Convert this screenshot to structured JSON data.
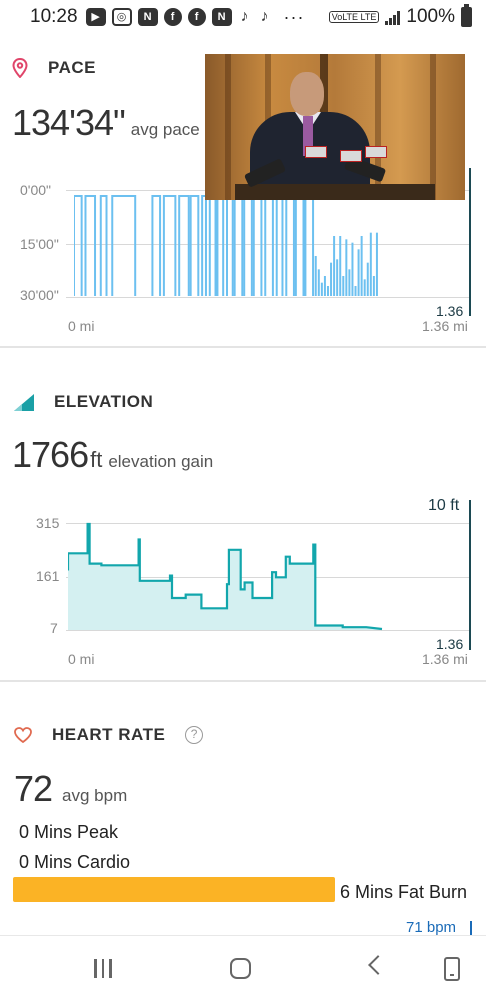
{
  "status_bar": {
    "time": "10:28",
    "battery": "100%",
    "network_badge": "VoLTE LTE",
    "icons": [
      "youtube-icon",
      "instagram-icon",
      "news-icon",
      "facebook-icon",
      "facebook-icon",
      "news-icon",
      "tiktok-icon",
      "tiktok-icon",
      "more-dots-icon"
    ],
    "more": "···"
  },
  "pace": {
    "title": "PACE",
    "value": "134'34\"",
    "unit": "avg pace",
    "y_ticks": [
      "0'00\"",
      "15'00\"",
      "30'00\""
    ],
    "x_start": "0 mi",
    "x_end": "1.36 mi",
    "cursor_value": "1.36"
  },
  "elevation": {
    "title": "ELEVATION",
    "value": "1766",
    "unit_short": "ft",
    "unit": "elevation gain",
    "y_ticks": [
      "315",
      "161",
      "7"
    ],
    "x_start": "0 mi",
    "x_end": "1.36 mi",
    "cursor_top_value": "10 ft",
    "cursor_value": "1.36"
  },
  "heart_rate": {
    "title": "HEART RATE",
    "help": "?",
    "value": "72",
    "unit": "avg bpm",
    "zones": {
      "peak": "0 Mins Peak",
      "cardio": "0 Mins Cardio",
      "fat_burn": "6 Mins Fat Burn"
    },
    "marker": "71 bpm"
  },
  "colors": {
    "pace_line": "#6cc0f0",
    "elevation_line": "#12a6ac",
    "elevation_fill": "#d4f0f1",
    "fat_burn": "#fbb325",
    "pace_icon": "#e0456a",
    "elevation_icon": "#1aa0a6",
    "heart_icon": "#e06a50"
  },
  "chart_data": [
    {
      "type": "line",
      "xlim": [
        0,
        1.36
      ],
      "ylim": [
        30,
        0
      ],
      "xlabel": "",
      "ylabel": "",
      "y_ticks": [
        "0'00\"",
        "15'00\"",
        "30'00\""
      ],
      "pace_segments": [
        {
          "x0": 0.0,
          "x1": 0.02,
          "y": 0
        },
        {
          "x0": 0.03,
          "x1": 0.055,
          "y": 0
        },
        {
          "x0": 0.07,
          "x1": 0.085,
          "y": 0
        },
        {
          "x0": 0.1,
          "x1": 0.16,
          "y": 0
        },
        {
          "x0": 0.205,
          "x1": 0.225,
          "y": 0
        },
        {
          "x0": 0.235,
          "x1": 0.265,
          "y": 0
        },
        {
          "x0": 0.275,
          "x1": 0.3,
          "y": 0
        },
        {
          "x0": 0.305,
          "x1": 0.325,
          "y": 0
        },
        {
          "x0": 0.335,
          "x1": 0.345,
          "y": 0
        },
        {
          "x0": 0.355,
          "x1": 0.37,
          "y": 0
        },
        {
          "x0": 0.375,
          "x1": 0.39,
          "y": 0
        },
        {
          "x0": 0.4,
          "x1": 0.415,
          "y": 0
        },
        {
          "x0": 0.42,
          "x1": 0.44,
          "y": 0
        },
        {
          "x0": 0.445,
          "x1": 0.465,
          "y": 0
        },
        {
          "x0": 0.47,
          "x1": 0.49,
          "y": 0
        },
        {
          "x0": 0.5,
          "x1": 0.52,
          "y": 0
        },
        {
          "x0": 0.53,
          "x1": 0.545,
          "y": 0
        },
        {
          "x0": 0.555,
          "x1": 0.575,
          "y": 0
        },
        {
          "x0": 0.58,
          "x1": 0.6,
          "y": 0
        },
        {
          "x0": 0.605,
          "x1": 0.625,
          "y": 0
        }
      ],
      "pace_spikes": [
        {
          "x": 0.632,
          "y": 18
        },
        {
          "x": 0.64,
          "y": 22
        },
        {
          "x": 0.648,
          "y": 26
        },
        {
          "x": 0.656,
          "y": 24
        },
        {
          "x": 0.664,
          "y": 27
        },
        {
          "x": 0.672,
          "y": 20
        },
        {
          "x": 0.68,
          "y": 12
        },
        {
          "x": 0.688,
          "y": 19
        },
        {
          "x": 0.696,
          "y": 12
        },
        {
          "x": 0.704,
          "y": 24
        },
        {
          "x": 0.712,
          "y": 13
        },
        {
          "x": 0.72,
          "y": 22
        },
        {
          "x": 0.728,
          "y": 14
        },
        {
          "x": 0.736,
          "y": 27
        },
        {
          "x": 0.744,
          "y": 16
        },
        {
          "x": 0.752,
          "y": 12
        },
        {
          "x": 0.76,
          "y": 25
        },
        {
          "x": 0.768,
          "y": 20
        },
        {
          "x": 0.776,
          "y": 11
        },
        {
          "x": 0.784,
          "y": 24
        },
        {
          "x": 0.792,
          "y": 11
        }
      ],
      "pace_end_x": 0.8
    },
    {
      "type": "area",
      "xlim": [
        0,
        1.36
      ],
      "ylim": [
        7,
        315
      ],
      "xlabel": "",
      "ylabel": "",
      "y_ticks": [
        "315",
        "161",
        "7"
      ],
      "series": [
        {
          "x": [
            0.0,
            0.0,
            0.05,
            0.05,
            0.055,
            0.055,
            0.085,
            0.085,
            0.11,
            0.11,
            0.18,
            0.18,
            0.183,
            0.183,
            0.24,
            0.24,
            0.26,
            0.26,
            0.265,
            0.265,
            0.3,
            0.3,
            0.34,
            0.34,
            0.405,
            0.405,
            0.41,
            0.41,
            0.44,
            0.44,
            0.45,
            0.45,
            0.47,
            0.47,
            0.52,
            0.52,
            0.53,
            0.53,
            0.555,
            0.555,
            0.565,
            0.565,
            0.625,
            0.625,
            0.63,
            0.63,
            0.65,
            0.65,
            0.7,
            0.7,
            0.76,
            0.76,
            0.8
          ],
          "y": [
            180,
            230,
            230,
            315,
            315,
            200,
            200,
            195,
            195,
            195,
            195,
            270,
            270,
            150,
            150,
            150,
            150,
            165,
            165,
            100,
            100,
            110,
            110,
            70,
            70,
            140,
            140,
            240,
            240,
            125,
            125,
            145,
            145,
            100,
            100,
            175,
            175,
            160,
            160,
            220,
            220,
            200,
            200,
            255,
            255,
            20,
            20,
            20,
            20,
            15,
            15,
            15,
            10
          ]
        }
      ],
      "pace_end_x": 0.8
    }
  ]
}
